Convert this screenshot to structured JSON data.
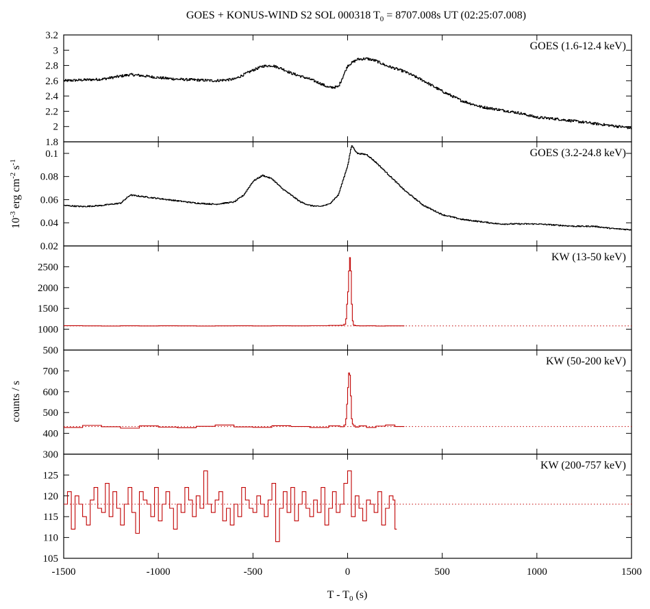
{
  "chart_data": {
    "type": "line",
    "title": "GOES + KONUS-WIND S2 SOL 000318 T",
    "title_sub": "0",
    "title_tail": " = 8707.008s UT (02:25:07.008)",
    "xlabel": "T - T",
    "xlabel_sub": "0",
    "xlabel_tail": " (s)",
    "xlim": [
      -1500,
      1500
    ],
    "xticks": [
      -1500,
      -1000,
      -500,
      0,
      500,
      1000,
      1500
    ],
    "ylabel_goes": "10-3 erg cm-2 s-1",
    "ylabel_kw": "counts / s",
    "colors": {
      "goes": "#000000",
      "kw": "#c00000"
    },
    "panels": [
      {
        "label": "GOES (1.6-12.4 keV)",
        "ylim": [
          1.8,
          3.2
        ],
        "yticks": [
          "1.8",
          "2",
          "2.2",
          "2.4",
          "2.6",
          "2.8",
          "3",
          "3.2"
        ],
        "series_color": "goes",
        "x": [
          -1500,
          -1400,
          -1300,
          -1200,
          -1150,
          -1100,
          -1000,
          -900,
          -800,
          -700,
          -600,
          -500,
          -450,
          -400,
          -350,
          -300,
          -250,
          -200,
          -150,
          -100,
          -50,
          0,
          50,
          100,
          150,
          200,
          300,
          400,
          500,
          600,
          700,
          800,
          900,
          1000,
          1100,
          1200,
          1300,
          1400,
          1500
        ],
        "y": [
          2.6,
          2.61,
          2.62,
          2.66,
          2.68,
          2.67,
          2.64,
          2.62,
          2.61,
          2.6,
          2.62,
          2.74,
          2.79,
          2.8,
          2.76,
          2.7,
          2.66,
          2.62,
          2.57,
          2.51,
          2.52,
          2.8,
          2.88,
          2.89,
          2.86,
          2.8,
          2.72,
          2.6,
          2.46,
          2.34,
          2.26,
          2.22,
          2.18,
          2.12,
          2.1,
          2.07,
          2.04,
          2.01,
          1.98
        ]
      },
      {
        "label": "GOES (3.2-24.8 keV)",
        "ylim": [
          0.02,
          0.11
        ],
        "yticks": [
          "0.02",
          "0.04",
          "0.06",
          "0.08",
          "0.1"
        ],
        "series_color": "goes",
        "x": [
          -1500,
          -1400,
          -1300,
          -1200,
          -1150,
          -1100,
          -1000,
          -900,
          -800,
          -700,
          -600,
          -550,
          -500,
          -450,
          -400,
          -350,
          -300,
          -250,
          -200,
          -150,
          -100,
          -50,
          0,
          20,
          50,
          100,
          150,
          200,
          300,
          400,
          500,
          600,
          700,
          800,
          900,
          1000,
          1100,
          1200,
          1300,
          1400,
          1500
        ],
        "y": [
          0.055,
          0.054,
          0.055,
          0.057,
          0.064,
          0.063,
          0.061,
          0.059,
          0.057,
          0.056,
          0.058,
          0.064,
          0.076,
          0.081,
          0.078,
          0.07,
          0.064,
          0.058,
          0.055,
          0.054,
          0.056,
          0.064,
          0.09,
          0.107,
          0.1,
          0.099,
          0.092,
          0.084,
          0.068,
          0.055,
          0.047,
          0.043,
          0.041,
          0.039,
          0.039,
          0.039,
          0.038,
          0.037,
          0.037,
          0.035,
          0.034
        ]
      },
      {
        "label": "KW (13-50 keV)",
        "ylim": [
          500,
          3000
        ],
        "yticks": [
          "500",
          "1000",
          "1500",
          "2000",
          "2500"
        ],
        "series_color": "kw",
        "background": 1080,
        "x": [
          -1500,
          -1400,
          -1300,
          -1200,
          -1100,
          -1000,
          -900,
          -800,
          -700,
          -600,
          -500,
          -400,
          -300,
          -200,
          -100,
          -40,
          -20,
          -10,
          -5,
          0,
          5,
          10,
          15,
          20,
          25,
          30,
          40,
          60,
          100,
          150,
          200,
          250
        ],
        "y": [
          1085,
          1080,
          1078,
          1082,
          1079,
          1083,
          1080,
          1078,
          1081,
          1083,
          1079,
          1082,
          1080,
          1084,
          1090,
          1095,
          1120,
          1250,
          1600,
          1900,
          2400,
          2720,
          2400,
          1600,
          1200,
          1100,
          1085,
          1080,
          1082,
          1078,
          1081,
          1080
        ]
      },
      {
        "label": "KW (50-200 keV)",
        "ylim": [
          300,
          800
        ],
        "yticks": [
          "300",
          "400",
          "500",
          "600",
          "700"
        ],
        "series_color": "kw",
        "background": 433,
        "x": [
          -1500,
          -1400,
          -1300,
          -1200,
          -1100,
          -1000,
          -900,
          -800,
          -700,
          -600,
          -500,
          -400,
          -300,
          -200,
          -100,
          -40,
          -20,
          -10,
          -5,
          0,
          5,
          10,
          15,
          20,
          25,
          30,
          40,
          60,
          100,
          150,
          200,
          250
        ],
        "y": [
          428,
          438,
          432,
          425,
          436,
          430,
          427,
          434,
          440,
          431,
          429,
          437,
          433,
          428,
          436,
          432,
          440,
          470,
          540,
          620,
          690,
          680,
          580,
          470,
          445,
          438,
          430,
          436,
          428,
          435,
          440,
          433
        ]
      },
      {
        "label": "KW (200-757 keV)",
        "ylim": [
          105,
          130
        ],
        "yticks": [
          "105",
          "110",
          "115",
          "120",
          "125"
        ],
        "series_color": "kw",
        "background": 118,
        "x": [
          -1500,
          -1480,
          -1460,
          -1440,
          -1420,
          -1400,
          -1380,
          -1360,
          -1340,
          -1320,
          -1300,
          -1280,
          -1260,
          -1240,
          -1220,
          -1200,
          -1180,
          -1160,
          -1140,
          -1120,
          -1100,
          -1080,
          -1060,
          -1040,
          -1020,
          -1000,
          -980,
          -960,
          -940,
          -920,
          -900,
          -880,
          -860,
          -840,
          -820,
          -800,
          -780,
          -760,
          -740,
          -720,
          -700,
          -680,
          -660,
          -640,
          -620,
          -600,
          -580,
          -560,
          -540,
          -520,
          -500,
          -480,
          -460,
          -440,
          -420,
          -400,
          -380,
          -360,
          -340,
          -320,
          -300,
          -280,
          -260,
          -240,
          -220,
          -200,
          -180,
          -160,
          -140,
          -120,
          -100,
          -80,
          -60,
          -40,
          -20,
          0,
          20,
          40,
          60,
          80,
          100,
          120,
          140,
          160,
          180,
          200,
          220,
          240,
          250
        ],
        "y": [
          118,
          121,
          112,
          120,
          118,
          115,
          113,
          119,
          122,
          117,
          116,
          123,
          115,
          121,
          117,
          113,
          118,
          122,
          116,
          111,
          121,
          119,
          118,
          115,
          122,
          114,
          118,
          121,
          117,
          112,
          118,
          116,
          122,
          119,
          115,
          120,
          117,
          126,
          118,
          116,
          119,
          121,
          114,
          117,
          113,
          118,
          115,
          122,
          119,
          117,
          116,
          120,
          118,
          115,
          119,
          123,
          109,
          117,
          121,
          116,
          122,
          114,
          118,
          121,
          117,
          115,
          119,
          116,
          122,
          113,
          117,
          121,
          116,
          118,
          123,
          126,
          115,
          120,
          117,
          114,
          119,
          118,
          116,
          121,
          113,
          117,
          120,
          119,
          112
        ]
      }
    ]
  }
}
